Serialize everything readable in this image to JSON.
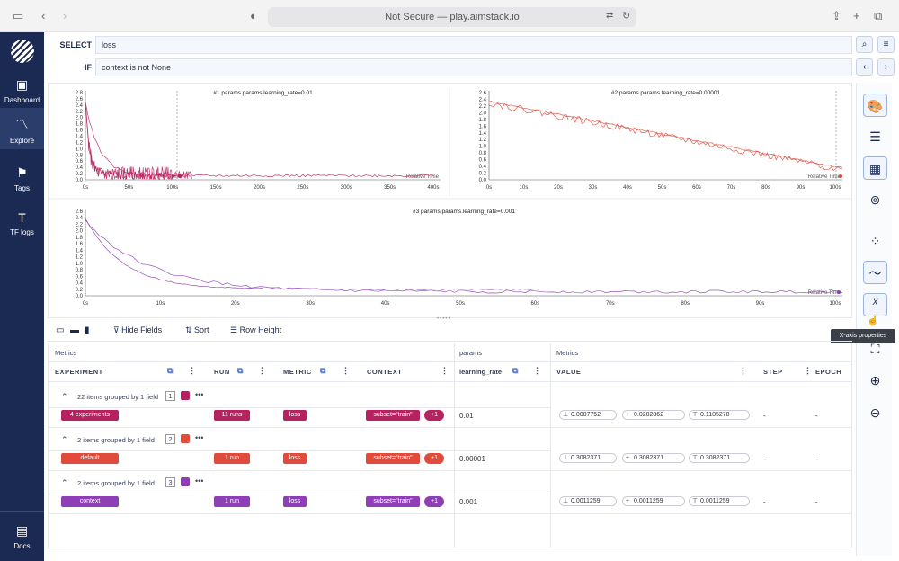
{
  "browser": {
    "url": "Not Secure — play.aimstack.io"
  },
  "sidebar": {
    "items": [
      {
        "label": "Dashboard"
      },
      {
        "label": "Explore"
      },
      {
        "label": "Tags"
      },
      {
        "label": "TF logs"
      },
      {
        "label": "Docs"
      }
    ]
  },
  "query": {
    "select_label": "SELECT",
    "select_value": "loss",
    "if_label": "IF",
    "if_value": "context is not None"
  },
  "charts": [
    {
      "title": "#1 params.params.learning_rate=0.01",
      "x_ticks": [
        "0s",
        "50s",
        "100s",
        "150s",
        "200s",
        "250s",
        "300s",
        "350s",
        "400s"
      ],
      "y_ticks": [
        "0.0",
        "0.2",
        "0.4",
        "0.6",
        "0.8",
        "1.0",
        "1.2",
        "1.4",
        "1.6",
        "1.8",
        "2.0",
        "2.2",
        "2.4",
        "2.6",
        "2.8"
      ],
      "axis_label": "Relative Time",
      "color": "#b5225f"
    },
    {
      "title": "#2 params.params.learning_rate=0.00001",
      "x_ticks": [
        "0s",
        "10s",
        "20s",
        "30s",
        "40s",
        "50s",
        "60s",
        "70s",
        "80s",
        "90s",
        "100s"
      ],
      "y_ticks": [
        "0.0",
        "0.2",
        "0.4",
        "0.6",
        "0.8",
        "1.0",
        "1.2",
        "1.4",
        "1.6",
        "1.8",
        "2.0",
        "2.2",
        "2.4",
        "2.6"
      ],
      "axis_label": "Relative Time",
      "color": "#e04b3c"
    },
    {
      "title": "#3 params.params.learning_rate=0.001",
      "x_ticks": [
        "0s",
        "10s",
        "20s",
        "30s",
        "40s",
        "50s",
        "60s",
        "70s",
        "80s",
        "90s",
        "100s"
      ],
      "y_ticks": [
        "0.0",
        "0.2",
        "0.4",
        "0.6",
        "0.8",
        "1.0",
        "1.2",
        "1.4",
        "1.6",
        "1.8",
        "2.0",
        "2.2",
        "2.4",
        "2.6"
      ],
      "axis_label": "Relative Time",
      "color": "#8e3fb5"
    }
  ],
  "toolbar": {
    "hide_fields": "Hide Fields",
    "sort": "Sort",
    "row_height": "Row Height"
  },
  "table": {
    "group_headers": {
      "metrics": "Metrics",
      "params": "params",
      "metrics2": "Metrics"
    },
    "columns": {
      "experiment": "EXPERIMENT",
      "run": "RUN",
      "metric": "METRIC",
      "context": "CONTEXT",
      "learning_rate": "learning_rate",
      "value": "VALUE",
      "step": "STEP",
      "epoch": "EPOCH"
    },
    "groups": [
      {
        "summary": "22 items grouped by 1 field",
        "index": "1",
        "color": "#b5225f",
        "experiment": "4 experiments",
        "run": "11 runs",
        "metric": "loss",
        "context": "subset=\"train\"",
        "more": "+1",
        "lr": "0.01",
        "min": "0.0007752",
        "mean": "0.0282862",
        "max": "0.1105278",
        "step": "-",
        "epoch": "-"
      },
      {
        "summary": "2 items grouped by 1 field",
        "index": "2",
        "color": "#e04b3c",
        "experiment": "default",
        "run": "1 run",
        "metric": "loss",
        "context": "subset=\"train\"",
        "more": "+1",
        "lr": "0.00001",
        "min": "0.3082371",
        "mean": "0.3082371",
        "max": "0.3082371",
        "step": "-",
        "epoch": "-"
      },
      {
        "summary": "2 items grouped by 1 field",
        "index": "3",
        "color": "#8e3fb5",
        "experiment": "context",
        "run": "1 run",
        "metric": "loss",
        "context": "subset=\"train\"",
        "more": "+1",
        "lr": "0.001",
        "min": "0.0011259",
        "mean": "0.0011259",
        "max": "0.0011259",
        "step": "-",
        "epoch": "-"
      }
    ]
  },
  "right_panel": {
    "tooltip": "X-axis properties",
    "x_glyph": "X"
  }
}
